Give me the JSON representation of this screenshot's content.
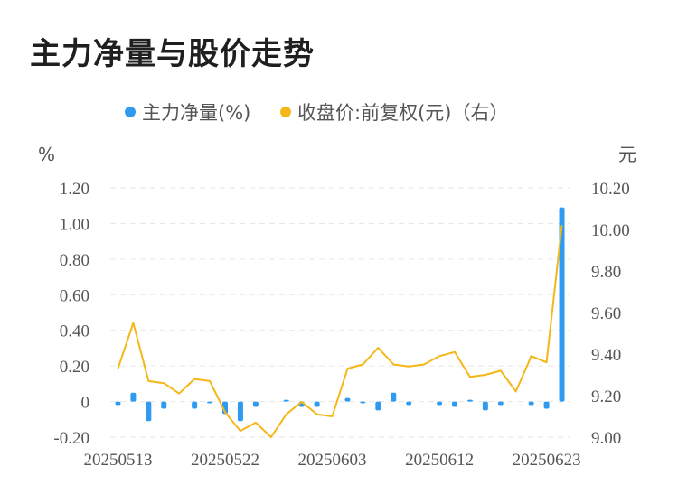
{
  "title": "主力净量与股价走势",
  "chart_data": {
    "type": "bar+line",
    "legend": [
      "主力净量(%)",
      "收盘价:前复权(元)（右）"
    ],
    "left_unit": "%",
    "right_unit": "元",
    "left_ticks": [
      "1.20",
      "1.00",
      "0.80",
      "0.60",
      "0.40",
      "0.20",
      "0",
      "-0.20"
    ],
    "right_ticks": [
      "10.20",
      "10.00",
      "9.80",
      "9.60",
      "9.40",
      "9.20",
      "9.00"
    ],
    "x_tick_labels": [
      "20250513",
      "20250522",
      "20250603",
      "20250612",
      "20250623"
    ],
    "x_tick_index": [
      0,
      7,
      14,
      21,
      28
    ],
    "left_ylim": [
      -0.2,
      1.2
    ],
    "right_ylim": [
      9.0,
      10.2
    ],
    "colors": {
      "bar": "#2e9bf0",
      "line": "#f5b717",
      "grid": "#e6e6e6",
      "text": "#555555"
    },
    "series": [
      {
        "name": "主力净量(%)",
        "axis": "left",
        "type": "bar",
        "values": [
          -0.02,
          0.05,
          -0.11,
          -0.04,
          0,
          -0.04,
          -0.01,
          -0.07,
          -0.11,
          -0.03,
          0,
          0.01,
          -0.03,
          -0.03,
          0,
          0.02,
          -0.01,
          -0.05,
          0.05,
          -0.02,
          0,
          -0.02,
          -0.03,
          0.01,
          -0.05,
          -0.02,
          0,
          -0.02,
          -0.04,
          1.09
        ]
      },
      {
        "name": "收盘价:前复权(元)（右）",
        "axis": "right",
        "type": "line",
        "values": [
          9.33,
          9.55,
          9.27,
          9.26,
          9.21,
          9.28,
          9.27,
          9.12,
          9.03,
          9.07,
          9.0,
          9.11,
          9.17,
          9.11,
          9.1,
          9.33,
          9.35,
          9.43,
          9.35,
          9.34,
          9.35,
          9.39,
          9.41,
          9.29,
          9.3,
          9.32,
          9.22,
          9.39,
          9.36,
          10.02
        ]
      }
    ]
  }
}
